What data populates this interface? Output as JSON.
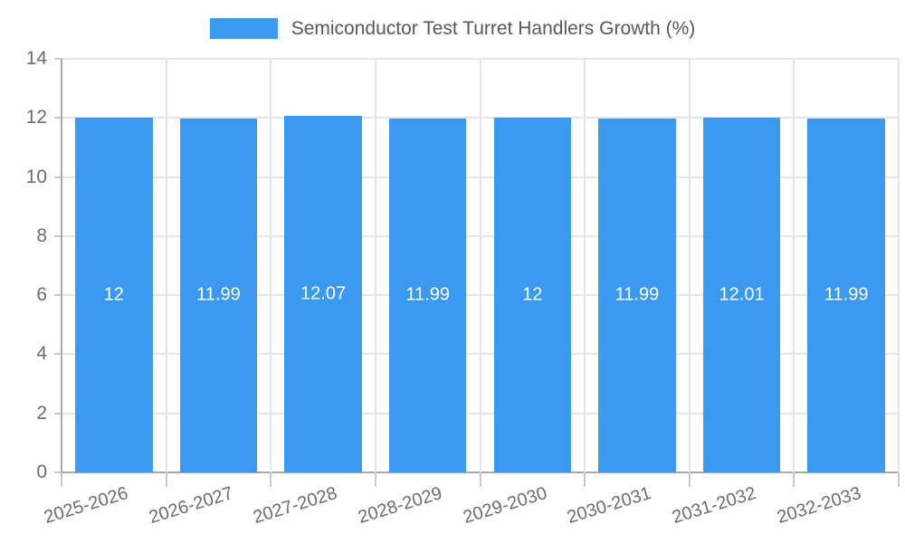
{
  "chart_data": {
    "type": "bar",
    "title": "Semiconductor Test Turret Handlers Growth (%)",
    "categories": [
      "2025-2026",
      "2026-2027",
      "2027-2028",
      "2028-2029",
      "2029-2030",
      "2030-2031",
      "2031-2032",
      "2032-2033"
    ],
    "values": [
      12,
      11.99,
      12.07,
      11.99,
      12,
      11.99,
      12.01,
      11.99
    ],
    "value_labels": [
      "12",
      "11.99",
      "12.07",
      "11.99",
      "12",
      "11.99",
      "12.01",
      "11.99"
    ],
    "xlabel": "",
    "ylabel": "",
    "ylim": [
      0,
      14
    ],
    "yticks": [
      0,
      2,
      4,
      6,
      8,
      10,
      12,
      14
    ],
    "grid": true,
    "legend_position": "top-center",
    "bar_width_fraction": 0.74
  },
  "colors": {
    "bar": "#3b99ef",
    "grid": "#e5e5e5",
    "axis": "#a9a9a9",
    "tick_mark": "#c9c9c9",
    "tick_text": "#6d6d6d",
    "title_text": "#56585b",
    "value_text": "#ffffff",
    "background": "#ffffff"
  }
}
